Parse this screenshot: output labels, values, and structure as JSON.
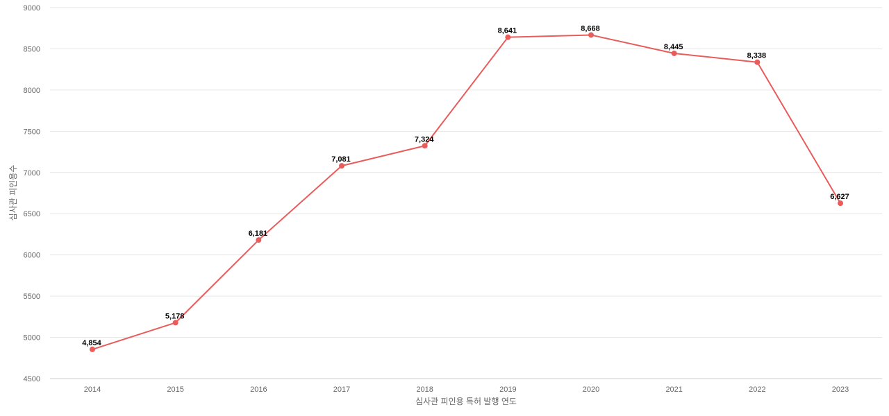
{
  "chart_data": {
    "type": "line",
    "title": "",
    "xlabel": "심사관 피인용 특허 발행 연도",
    "ylabel": "심사관 피인용수",
    "ylim": [
      4500,
      9000
    ],
    "yticks": [
      "9000",
      "8500",
      "8000",
      "7500",
      "7000",
      "6500",
      "6000",
      "5500",
      "5000",
      "4500"
    ],
    "categories": [
      "2014",
      "2015",
      "2016",
      "2017",
      "2018",
      "2019",
      "2020",
      "2021",
      "2022",
      "2023"
    ],
    "series": [
      {
        "values": [
          4854,
          5178,
          6181,
          7081,
          7324,
          8641,
          8668,
          8445,
          8338,
          6627
        ],
        "labels": [
          "4,854",
          "5,178",
          "6,181",
          "7,081",
          "7,324",
          "8,641",
          "8,668",
          "8,445",
          "8,338",
          "6,627"
        ],
        "color": "#e85c5c"
      }
    ],
    "grid": true,
    "legend": "none"
  }
}
